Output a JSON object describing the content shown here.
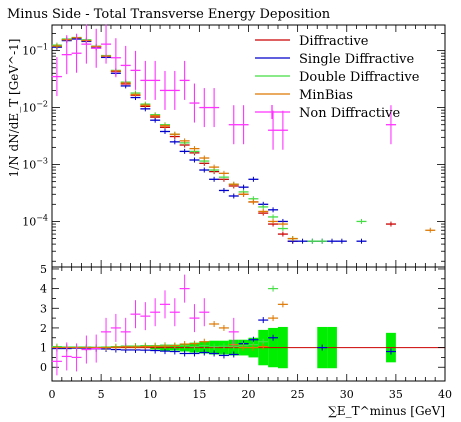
{
  "chart_data": {
    "type": "scatter",
    "title": "Minus Side - Total Transverse Energy Deposition",
    "xlabel": "∑E_T^minus [GeV]",
    "ylabel": "1/N dN/dE_T [GeV^-1]",
    "xlim": [
      0,
      40
    ],
    "top_panel": {
      "ylog": true,
      "ylim_exp": [
        -4.8,
        -0.55
      ],
      "ytick_labels": [
        "10^-1",
        "10^-2",
        "10^-3",
        "10^-4"
      ]
    },
    "ratio_panel": {
      "ylim": [
        -0.7,
        5.1
      ],
      "ytick_labels": [
        "0",
        "1",
        "2",
        "3",
        "4",
        "5"
      ]
    },
    "xtick_labels": [
      "0",
      "5",
      "10",
      "15",
      "20",
      "25",
      "30",
      "35",
      "40"
    ],
    "legend_position": "top-right",
    "series": [
      {
        "name": "Diffractive",
        "color": "#cc0000",
        "style": "line",
        "points": [
          [
            0.5,
            0.118
          ],
          [
            1.5,
            0.155
          ],
          [
            2.5,
            0.165
          ],
          [
            3.5,
            0.15
          ],
          [
            4.5,
            0.118
          ],
          [
            5.5,
            0.08
          ],
          [
            6.5,
            0.043
          ],
          [
            7.5,
            0.026
          ],
          [
            8.5,
            0.0165
          ],
          [
            9.5,
            0.0105
          ],
          [
            10.5,
            0.0068
          ],
          [
            11.5,
            0.0045
          ],
          [
            12.5,
            0.0031
          ],
          [
            13.5,
            0.0022
          ],
          [
            14.5,
            0.0016
          ],
          [
            15.5,
            0.00105
          ],
          [
            16.5,
            0.00075
          ],
          [
            17.5,
            0.00055
          ],
          [
            18.5,
            0.00042
          ],
          [
            19.5,
            0.0003
          ],
          [
            20.5,
            0.00022
          ],
          [
            21.5,
            0.00014
          ],
          [
            22.5,
            9e-05
          ],
          [
            23.5,
            6e-05
          ],
          [
            24.5,
            4.5e-05
          ],
          [
            34.5,
            9e-05
          ]
        ]
      },
      {
        "name": "Single Diffractive",
        "color": "#0000cc",
        "style": "line",
        "points": [
          [
            0.5,
            0.115
          ],
          [
            1.5,
            0.15
          ],
          [
            2.5,
            0.16
          ],
          [
            3.5,
            0.145
          ],
          [
            4.5,
            0.112
          ],
          [
            5.5,
            0.076
          ],
          [
            6.5,
            0.04
          ],
          [
            7.5,
            0.024
          ],
          [
            8.5,
            0.015
          ],
          [
            9.5,
            0.0095
          ],
          [
            10.5,
            0.006
          ],
          [
            11.5,
            0.0038
          ],
          [
            12.5,
            0.0025
          ],
          [
            13.5,
            0.0017
          ],
          [
            14.5,
            0.0012
          ],
          [
            15.5,
            0.0008
          ],
          [
            16.5,
            0.00055
          ],
          [
            17.5,
            0.00035
          ],
          [
            18.5,
            0.00028
          ],
          [
            19.5,
            0.0004
          ],
          [
            20.5,
            0.00055
          ],
          [
            21.5,
            0.0002
          ],
          [
            22.5,
            0.00016
          ],
          [
            23.5,
            0.0001
          ],
          [
            24.5,
            4.5e-05
          ],
          [
            25.5,
            4.5e-05
          ],
          [
            26.5,
            4.5e-05
          ],
          [
            27.5,
            4.5e-05
          ],
          [
            28.5,
            4.5e-05
          ],
          [
            29.5,
            4.5e-05
          ],
          [
            31.5,
            4.5e-05
          ]
        ]
      },
      {
        "name": "Double Diffractive",
        "color": "#44dd44",
        "style": "line",
        "points": [
          [
            0.5,
            0.125
          ],
          [
            1.5,
            0.16
          ],
          [
            2.5,
            0.17
          ],
          [
            3.5,
            0.155
          ],
          [
            4.5,
            0.12
          ],
          [
            5.5,
            0.082
          ],
          [
            6.5,
            0.045
          ],
          [
            7.5,
            0.028
          ],
          [
            8.5,
            0.018
          ],
          [
            9.5,
            0.0115
          ],
          [
            10.5,
            0.0075
          ],
          [
            11.5,
            0.005
          ],
          [
            12.5,
            0.0034
          ],
          [
            13.5,
            0.0024
          ],
          [
            14.5,
            0.0017
          ],
          [
            15.5,
            0.00115
          ],
          [
            16.5,
            0.0008
          ],
          [
            17.5,
            0.0006
          ],
          [
            18.5,
            0.00045
          ],
          [
            19.5,
            0.00033
          ],
          [
            20.5,
            0.00025
          ],
          [
            21.5,
            0.00018
          ],
          [
            22.5,
            0.00012
          ],
          [
            23.5,
            7.5e-05
          ],
          [
            24.5,
            5e-05
          ],
          [
            26.5,
            4.5e-05
          ],
          [
            27.5,
            4.5e-05
          ],
          [
            31.5,
            0.0001
          ]
        ]
      },
      {
        "name": "MinBias",
        "color": "#dd7700",
        "style": "line",
        "points": [
          [
            0.5,
            0.12
          ],
          [
            1.5,
            0.155
          ],
          [
            2.5,
            0.168
          ],
          [
            3.5,
            0.15
          ],
          [
            4.5,
            0.118
          ],
          [
            5.5,
            0.08
          ],
          [
            6.5,
            0.044
          ],
          [
            7.5,
            0.027
          ],
          [
            8.5,
            0.017
          ],
          [
            9.5,
            0.011
          ],
          [
            10.5,
            0.0072
          ],
          [
            11.5,
            0.0048
          ],
          [
            12.5,
            0.0034
          ],
          [
            13.5,
            0.0026
          ],
          [
            14.5,
            0.0019
          ],
          [
            15.5,
            0.0013
          ],
          [
            16.5,
            0.0009
          ],
          [
            17.5,
            0.0007
          ],
          [
            18.5,
            0.00045
          ],
          [
            19.5,
            0.0003
          ],
          [
            20.5,
            0.00022
          ],
          [
            21.5,
            0.00015
          ],
          [
            22.5,
            0.0001
          ],
          [
            23.5,
            9e-05
          ],
          [
            24.5,
            5e-05
          ],
          [
            38.5,
            7e-05
          ]
        ]
      },
      {
        "name": "Non Diffractive",
        "color": "#ff33ff",
        "style": "marker",
        "points": [
          [
            0.5,
            0.035
          ],
          [
            1.5,
            0.085
          ],
          [
            2.5,
            0.09
          ],
          [
            3.5,
            0.13
          ],
          [
            4.5,
            0.11
          ],
          [
            5.5,
            0.13
          ],
          [
            6.5,
            0.075
          ],
          [
            7.5,
            0.055
          ],
          [
            8.5,
            0.045
          ],
          [
            9.5,
            0.03
          ],
          [
            10.5,
            0.03
          ],
          [
            11.5,
            0.02
          ],
          [
            12.5,
            0.02
          ],
          [
            13.5,
            0.03
          ],
          [
            14.5,
            0.012
          ],
          [
            15.5,
            0.01
          ],
          [
            16.5,
            0.01
          ],
          [
            18.5,
            0.005
          ],
          [
            19.5,
            0.005
          ],
          [
            22.5,
            0.004
          ],
          [
            23.5,
            0.004
          ],
          [
            34.5,
            0.005
          ]
        ]
      }
    ],
    "ratio": {
      "band_color": "#00ee00",
      "band_bins": [
        [
          10.5,
          1.0,
          0.1
        ],
        [
          11.5,
          1.0,
          0.15
        ],
        [
          12.5,
          1.0,
          0.15
        ],
        [
          13.5,
          1.0,
          0.2
        ],
        [
          14.5,
          1.0,
          0.25
        ],
        [
          15.5,
          1.0,
          0.3
        ],
        [
          16.5,
          1.0,
          0.35
        ],
        [
          17.5,
          1.0,
          0.35
        ],
        [
          18.5,
          1.0,
          0.4
        ],
        [
          19.5,
          1.0,
          0.4
        ],
        [
          20.5,
          1.0,
          0.5
        ],
        [
          21.5,
          1.0,
          0.9
        ],
        [
          22.5,
          1.0,
          1.0
        ],
        [
          23.5,
          1.0,
          1.05
        ],
        [
          27.5,
          1.0,
          1.05
        ],
        [
          28.5,
          1.0,
          1.05
        ],
        [
          34.5,
          1.0,
          0.75
        ]
      ],
      "series": [
        {
          "name": "Single Diffractive",
          "points": [
            [
              0.5,
              0.95
            ],
            [
              1.5,
              0.95
            ],
            [
              2.5,
              0.97
            ],
            [
              3.5,
              0.97
            ],
            [
              4.5,
              0.94
            ],
            [
              5.5,
              0.93
            ],
            [
              6.5,
              0.9
            ],
            [
              7.5,
              0.88
            ],
            [
              8.5,
              0.88
            ],
            [
              9.5,
              0.87
            ],
            [
              10.5,
              0.85
            ],
            [
              11.5,
              0.82
            ],
            [
              12.5,
              0.8
            ],
            [
              13.5,
              0.7
            ],
            [
              14.5,
              0.7
            ],
            [
              15.5,
              0.75
            ],
            [
              16.5,
              0.7
            ],
            [
              17.5,
              0.6
            ],
            [
              18.5,
              0.65
            ],
            [
              19.5,
              1.2
            ],
            [
              20.5,
              1.4
            ],
            [
              21.5,
              2.4
            ],
            [
              22.5,
              1.5
            ],
            [
              27.5,
              1.0
            ],
            [
              34.5,
              0.8
            ]
          ]
        },
        {
          "name": "Double Diffractive",
          "points": [
            [
              0.5,
              1.05
            ],
            [
              1.5,
              1.03
            ],
            [
              2.5,
              1.03
            ],
            [
              3.5,
              1.03
            ],
            [
              4.5,
              1.02
            ],
            [
              5.5,
              1.03
            ],
            [
              6.5,
              1.05
            ],
            [
              7.5,
              1.08
            ],
            [
              8.5,
              1.08
            ],
            [
              9.5,
              1.1
            ],
            [
              10.5,
              1.1
            ],
            [
              11.5,
              1.12
            ],
            [
              12.5,
              1.1
            ],
            [
              13.5,
              1.1
            ],
            [
              14.5,
              1.05
            ],
            [
              15.5,
              1.1
            ],
            [
              16.5,
              1.05
            ],
            [
              17.5,
              1.07
            ],
            [
              18.5,
              1.05
            ],
            [
              19.5,
              1.1
            ],
            [
              20.5,
              1.15
            ],
            [
              21.5,
              1.3
            ],
            [
              22.5,
              4.0
            ]
          ]
        },
        {
          "name": "MinBias",
          "points": [
            [
              0.5,
              1.0
            ],
            [
              1.5,
              1.0
            ],
            [
              2.5,
              1.0
            ],
            [
              3.5,
              1.0
            ],
            [
              4.5,
              1.0
            ],
            [
              5.5,
              1.0
            ],
            [
              6.5,
              1.02
            ],
            [
              7.5,
              1.04
            ],
            [
              8.5,
              1.03
            ],
            [
              9.5,
              1.05
            ],
            [
              10.5,
              1.06
            ],
            [
              11.5,
              1.07
            ],
            [
              12.5,
              1.1
            ],
            [
              13.5,
              1.18
            ],
            [
              14.5,
              1.2
            ],
            [
              15.5,
              1.3
            ],
            [
              16.5,
              2.2
            ],
            [
              17.5,
              2.0
            ],
            [
              18.5,
              1.15
            ],
            [
              19.5,
              1.0
            ],
            [
              20.5,
              1.0
            ],
            [
              21.5,
              1.05
            ],
            [
              22.5,
              2.5
            ],
            [
              23.5,
              3.2
            ]
          ]
        },
        {
          "name": "Non Diffractive",
          "points": [
            [
              0.5,
              0.3
            ],
            [
              1.5,
              0.55
            ],
            [
              2.5,
              0.5
            ],
            [
              3.5,
              0.9
            ],
            [
              4.5,
              0.95
            ],
            [
              5.5,
              1.8
            ],
            [
              6.5,
              2.0
            ],
            [
              7.5,
              1.8
            ],
            [
              8.5,
              2.7
            ],
            [
              9.5,
              2.6
            ],
            [
              10.5,
              2.8
            ],
            [
              11.5,
              3.2
            ],
            [
              12.5,
              2.8
            ],
            [
              13.5,
              4.0
            ],
            [
              14.5,
              2.5
            ],
            [
              15.5,
              2.8
            ],
            [
              18.5,
              1.8
            ]
          ]
        }
      ]
    }
  }
}
